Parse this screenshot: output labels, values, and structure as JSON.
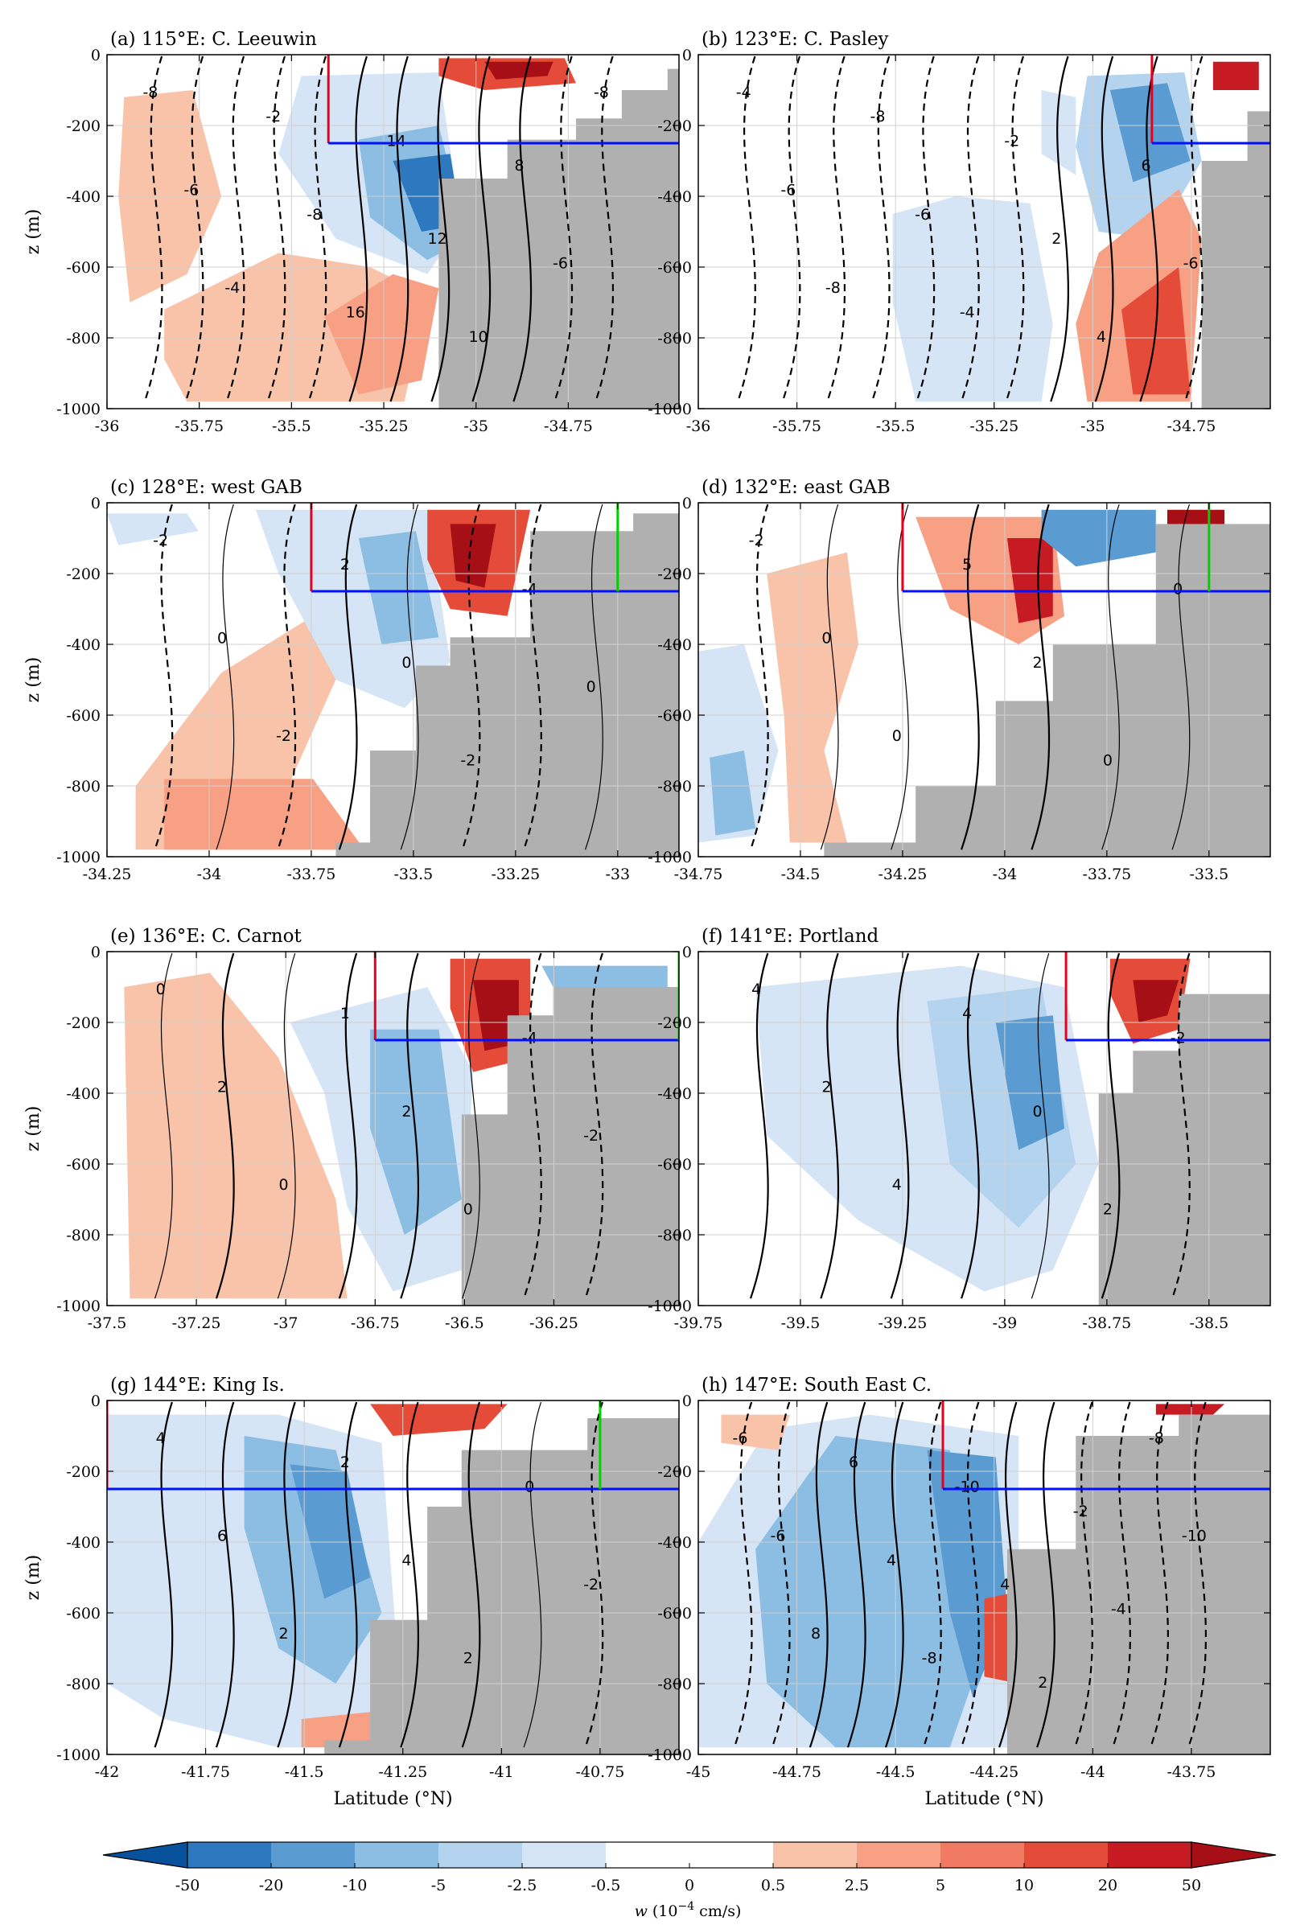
{
  "figure": {
    "xlabel": "Latitude (°N)",
    "ylabel": "z (m)",
    "colorbar_label_main": "w",
    "colorbar_label_unit": "(10",
    "colorbar_label_exp": "−4",
    "colorbar_label_tail": " cm/s)"
  },
  "colors": {
    "land": "#b0b0b0",
    "section_red": "#e8001c",
    "section_blue": "#0010ff",
    "section_green": "#00d000"
  },
  "colorbar": {
    "levels": [
      "-50",
      "-20",
      "-10",
      "-5",
      "-2.5",
      "-0.5",
      "0",
      "0.5",
      "2.5",
      "5",
      "10",
      "20",
      "50"
    ],
    "colors": [
      "#08519c",
      "#2d78bf",
      "#5a9bd2",
      "#8cbde3",
      "#b4d3ee",
      "#d6e5f6",
      "#ffffff",
      "#ffffff",
      "#f9c3aa",
      "#f7a083",
      "#f07a62",
      "#e54b39",
      "#c61b23",
      "#a50f15"
    ]
  },
  "chart_data": [
    {
      "type": "heatmap",
      "title": "(a) 115°E: C. Leeuwin",
      "xlim": [
        -36,
        -34.45
      ],
      "ylim": [
        -1000,
        0
      ],
      "xticks": [
        -36,
        -35.75,
        -35.5,
        -35.25,
        -35,
        -34.75
      ],
      "xticklabels": [
        "-36",
        "-35.75",
        "-35.5",
        "-35.25",
        "-35",
        "-34.75"
      ],
      "yticks": [
        0,
        -200,
        -400,
        -600,
        -800,
        -1000
      ],
      "yticklabels": [
        "0",
        "-200",
        "-400",
        "-600",
        "-800",
        "-1000"
      ],
      "contour_labels": [
        "-8",
        "-6",
        "-4",
        "-2",
        "-8",
        "16",
        "14",
        "12",
        "10",
        "8",
        "-6",
        "-8"
      ],
      "section": {
        "red_lat": -35.4,
        "blue_depth": -250,
        "green_lat": null
      }
    },
    {
      "type": "heatmap",
      "title": "(b) 123°E: C. Pasley",
      "xlim": [
        -36,
        -34.55
      ],
      "ylim": [
        -1000,
        0
      ],
      "xticks": [
        -36,
        -35.75,
        -35.5,
        -35.25,
        -35,
        -34.75
      ],
      "xticklabels": [
        "-36",
        "-35.75",
        "-35.5",
        "-35.25",
        "-35",
        "-34.75"
      ],
      "yticks": [
        0,
        -200,
        -400,
        -600,
        -800,
        -1000
      ],
      "yticklabels": [
        "0",
        "-200",
        "-400",
        "-600",
        "-800",
        "-1000"
      ],
      "contour_labels": [
        "-4",
        "-6",
        "-8",
        "-8",
        "-6",
        "-4",
        "-2",
        "2",
        "4",
        "6",
        "-6"
      ],
      "section": {
        "red_lat": -34.85,
        "blue_depth": -250,
        "green_lat": null
      }
    },
    {
      "type": "heatmap",
      "title": "(c) 128°E: west GAB",
      "xlim": [
        -34.25,
        -32.85
      ],
      "ylim": [
        -1000,
        0
      ],
      "xticks": [
        -34.25,
        -34,
        -33.75,
        -33.5,
        -33.25,
        -33
      ],
      "xticklabels": [
        "-34.25",
        "-34",
        "-33.75",
        "-33.5",
        "-33.25",
        "-33"
      ],
      "yticks": [
        0,
        -200,
        -400,
        -600,
        -800,
        -1000
      ],
      "yticklabels": [
        "0",
        "-200",
        "-400",
        "-600",
        "-800",
        "-1000"
      ],
      "contour_labels": [
        "-2",
        "0",
        "-2",
        "2",
        "0",
        "-2",
        "-4",
        "0"
      ],
      "section": {
        "red_lat": -33.75,
        "blue_depth": -250,
        "green_lat": -33
      }
    },
    {
      "type": "heatmap",
      "title": "(d) 132°E: east GAB",
      "xlim": [
        -34.75,
        -33.35
      ],
      "ylim": [
        -1000,
        0
      ],
      "xticks": [
        -34.75,
        -34.5,
        -34.25,
        -34,
        -33.75,
        -33.5
      ],
      "xticklabels": [
        "-34.75",
        "-34.5",
        "-34.25",
        "-34",
        "-33.75",
        "-33.5"
      ],
      "yticks": [
        0,
        -200,
        -400,
        -600,
        -800,
        -1000
      ],
      "yticklabels": [
        "0",
        "-200",
        "-400",
        "-600",
        "-800",
        "-1000"
      ],
      "contour_labels": [
        "-2",
        "0",
        "0",
        "5",
        "2",
        "0",
        "0"
      ],
      "section": {
        "red_lat": -34.25,
        "blue_depth": -250,
        "green_lat": -33.5
      }
    },
    {
      "type": "heatmap",
      "title": "(e) 136°E: C. Carnot",
      "xlim": [
        -37.5,
        -35.9
      ],
      "ylim": [
        -1000,
        0
      ],
      "xticks": [
        -37.5,
        -37.25,
        -37,
        -36.75,
        -36.5,
        -36.25
      ],
      "xticklabels": [
        "-37.5",
        "-37.25",
        "-37",
        "-36.75",
        "-36.5",
        "-36.25"
      ],
      "yticks": [
        0,
        -200,
        -400,
        -600,
        -800,
        -1000
      ],
      "yticklabels": [
        "0",
        "-200",
        "-400",
        "-600",
        "-800",
        "-1000"
      ],
      "contour_labels": [
        "0",
        "2",
        "0",
        "1",
        "2",
        "0",
        "-4",
        "-2"
      ],
      "section": {
        "red_lat": -36.75,
        "blue_depth": -250,
        "green_lat": -35.9
      }
    },
    {
      "type": "heatmap",
      "title": "(f) 141°E: Portland",
      "xlim": [
        -39.75,
        -38.35
      ],
      "ylim": [
        -1000,
        0
      ],
      "xticks": [
        -39.75,
        -39.5,
        -39.25,
        -39,
        -38.75,
        -38.5
      ],
      "xticklabels": [
        "-39.75",
        "-39.5",
        "-39.25",
        "-39",
        "-38.75",
        "-38.5"
      ],
      "yticks": [
        0,
        -200,
        -400,
        -600,
        -800,
        -1000
      ],
      "yticklabels": [
        "0",
        "-200",
        "-400",
        "-600",
        "-800",
        "-1000"
      ],
      "contour_labels": [
        "4",
        "2",
        "4",
        "4",
        "0",
        "2",
        "-2"
      ],
      "section": {
        "red_lat": -38.85,
        "blue_depth": -250,
        "green_lat": null
      }
    },
    {
      "type": "heatmap",
      "title": "(g) 144°E: King Is.",
      "xlim": [
        -42,
        -40.55
      ],
      "ylim": [
        -1000,
        0
      ],
      "xticks": [
        -42,
        -41.75,
        -41.5,
        -41.25,
        -41,
        -40.75
      ],
      "xticklabels": [
        "-42",
        "-41.75",
        "-41.5",
        "-41.25",
        "-41",
        "-40.75"
      ],
      "yticks": [
        0,
        -200,
        -400,
        -600,
        -800,
        -1000
      ],
      "yticklabels": [
        "0",
        "-200",
        "-400",
        "-600",
        "-800",
        "-1000"
      ],
      "contour_labels": [
        "4",
        "6",
        "2",
        "2",
        "4",
        "2",
        "0",
        "-2"
      ],
      "section": {
        "red_lat": -42,
        "blue_depth": -250,
        "green_lat": -40.75
      }
    },
    {
      "type": "heatmap",
      "title": "(h) 147°E: South East C.",
      "xlim": [
        -45,
        -43.55
      ],
      "ylim": [
        -1000,
        0
      ],
      "xticks": [
        -45,
        -44.75,
        -44.5,
        -44.25,
        -44,
        -43.75
      ],
      "xticklabels": [
        "-45",
        "-44.75",
        "-44.5",
        "-44.25",
        "-44",
        "-43.75"
      ],
      "yticks": [
        0,
        -200,
        -400,
        -600,
        -800,
        -1000
      ],
      "yticklabels": [
        "0",
        "-200",
        "-400",
        "-600",
        "-800",
        "-1000"
      ],
      "contour_labels": [
        "-6",
        "-6",
        "8",
        "6",
        "4",
        "-8",
        "-10",
        "4",
        "2",
        "-2",
        "-4",
        "-8",
        "-10"
      ],
      "section": {
        "red_lat": -44.38,
        "blue_depth": -250,
        "green_lat": null
      }
    }
  ]
}
